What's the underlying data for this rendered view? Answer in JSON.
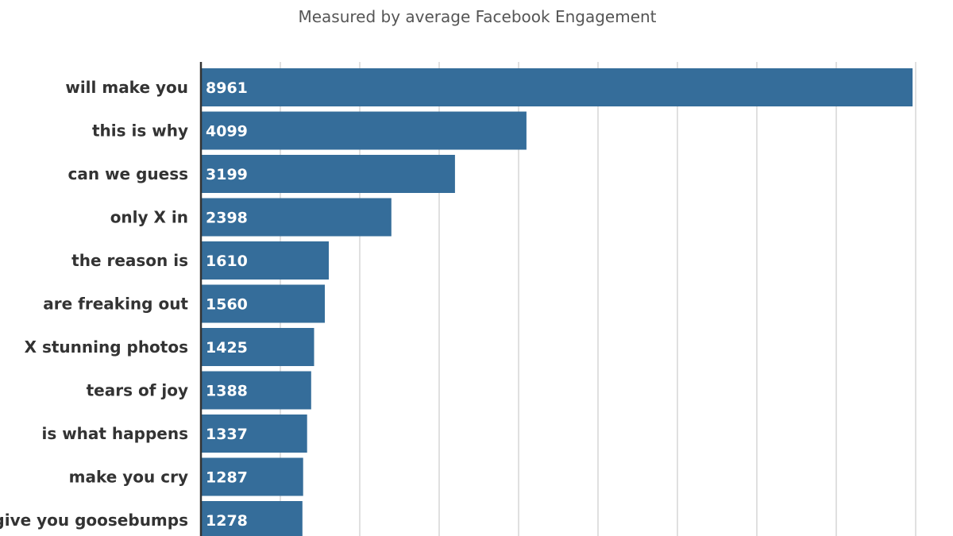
{
  "chart_data": {
    "type": "bar",
    "orientation": "horizontal",
    "subtitle": "Measured by average Facebook Engagement",
    "categories": [
      "will make you",
      "this is why",
      "can we guess",
      "only X in",
      "the reason is",
      "are freaking out",
      "X stunning photos",
      "tears of joy",
      "is what happens",
      "make you cry",
      "give you goosebumps"
    ],
    "values": [
      8961,
      4099,
      3199,
      2398,
      1610,
      1560,
      1425,
      1388,
      1337,
      1287,
      1278
    ],
    "xlim": [
      0,
      9000
    ],
    "grid": true,
    "bar_color": "#356d9a"
  }
}
